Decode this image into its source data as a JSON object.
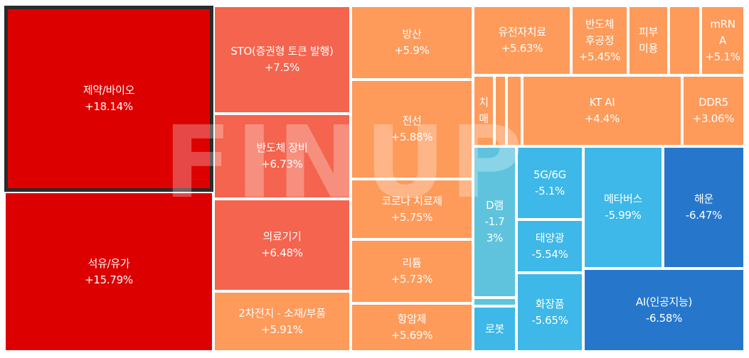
{
  "chart_data": {
    "type": "treemap",
    "watermark": "FINUP",
    "selected": "제약/바이오",
    "sectors": [
      {
        "name": "제약/바이오",
        "value": "+18.14%",
        "color": "#dd0000"
      },
      {
        "name": "석유/유가",
        "value": "+15.79%",
        "color": "#dd0000"
      },
      {
        "name": "STO(증권형 토큰 발행)",
        "value": "+7.5%",
        "color": "#f4644e"
      },
      {
        "name": "반도체 장비",
        "value": "+6.73%",
        "color": "#f4644e"
      },
      {
        "name": "의료기기",
        "value": "+6.48%",
        "color": "#f4644e"
      },
      {
        "name": "2차전지 - 소재/부품",
        "value": "+5.91%",
        "color": "#fe9a5a"
      },
      {
        "name": "방산",
        "value": "+5.9%",
        "color": "#fe9a5a"
      },
      {
        "name": "전선",
        "value": "+5.88%",
        "color": "#fe9a5a"
      },
      {
        "name": "코로나 치료제",
        "value": "+5.75%",
        "color": "#fe9a5a"
      },
      {
        "name": "리튬",
        "value": "+5.73%",
        "color": "#fe9a5a"
      },
      {
        "name": "항암제",
        "value": "+5.69%",
        "color": "#fe9a5a"
      },
      {
        "name": "유전자치료",
        "value": "+5.63%",
        "color": "#fe9a5a"
      },
      {
        "name": "반도체 후공정",
        "value": "+5.45%",
        "color": "#fe9a5a"
      },
      {
        "name": "피부 미용",
        "value": "",
        "color": "#fe9a5a"
      },
      {
        "name": "",
        "value": "",
        "color": "#fe9a5a"
      },
      {
        "name": "mRNA",
        "value": "+5.1%",
        "color": "#fe9a5a"
      },
      {
        "name": "치매",
        "value": "",
        "color": "#fe9a5a"
      },
      {
        "name": "",
        "value": "",
        "color": "#fe9a5a"
      },
      {
        "name": "",
        "value": "",
        "color": "#fe9a5a"
      },
      {
        "name": "KT AI",
        "value": "+4.4%",
        "color": "#fe9a5a"
      },
      {
        "name": "DDR5",
        "value": "+3.06%",
        "color": "#fe9a5a"
      },
      {
        "name": "D램",
        "value": "-1.73%",
        "color": "#5fc3dd"
      },
      {
        "name": "",
        "value": "",
        "color": "#5fc3dd"
      },
      {
        "name": "로봇",
        "value": "",
        "color": "#3db8e8"
      },
      {
        "name": "5G/6G",
        "value": "-5.1%",
        "color": "#3db8e8"
      },
      {
        "name": "태양광",
        "value": "-5.54%",
        "color": "#3db8e8"
      },
      {
        "name": "화장품",
        "value": "-5.65%",
        "color": "#3db8e8"
      },
      {
        "name": "메타버스",
        "value": "-5.99%",
        "color": "#3db8e8"
      },
      {
        "name": "해운",
        "value": "-6.47%",
        "color": "#2677cc"
      },
      {
        "name": "AI(인공지능)",
        "value": "-6.58%",
        "color": "#2677cc"
      }
    ]
  }
}
